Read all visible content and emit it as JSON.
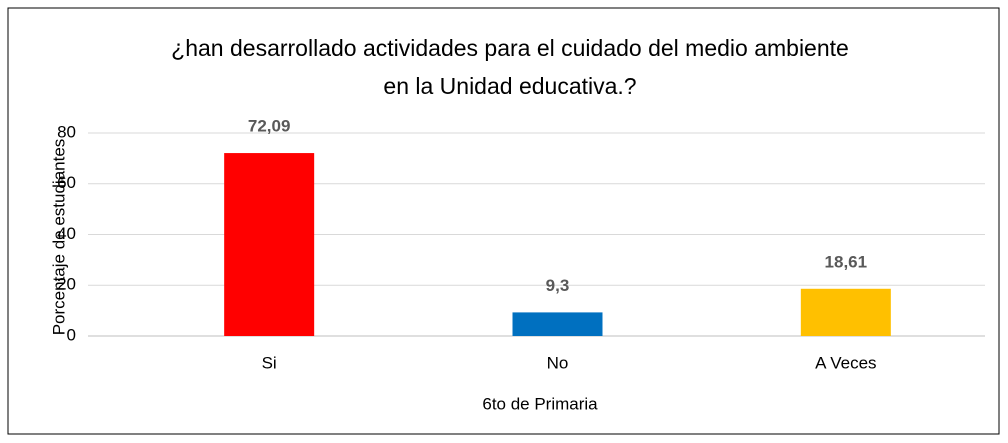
{
  "chart_data": {
    "type": "bar",
    "title": [
      "¿han desarrollado actividades para el cuidado del medio ambiente",
      "en la Unidad educativa.?"
    ],
    "y_label": "Porcentaje de estudiantes",
    "x_label": "6to de Primaria",
    "categories": [
      "Si",
      "No",
      "A Veces"
    ],
    "values": [
      72.09,
      9.3,
      18.61
    ],
    "value_labels": [
      "72,09",
      "9,3",
      "18,61"
    ],
    "colors": [
      "#ff0000",
      "#0070c0",
      "#ffc000"
    ],
    "ylim": [
      0,
      80
    ],
    "yticks": [
      0,
      20,
      40,
      60,
      80
    ],
    "grid": true
  }
}
